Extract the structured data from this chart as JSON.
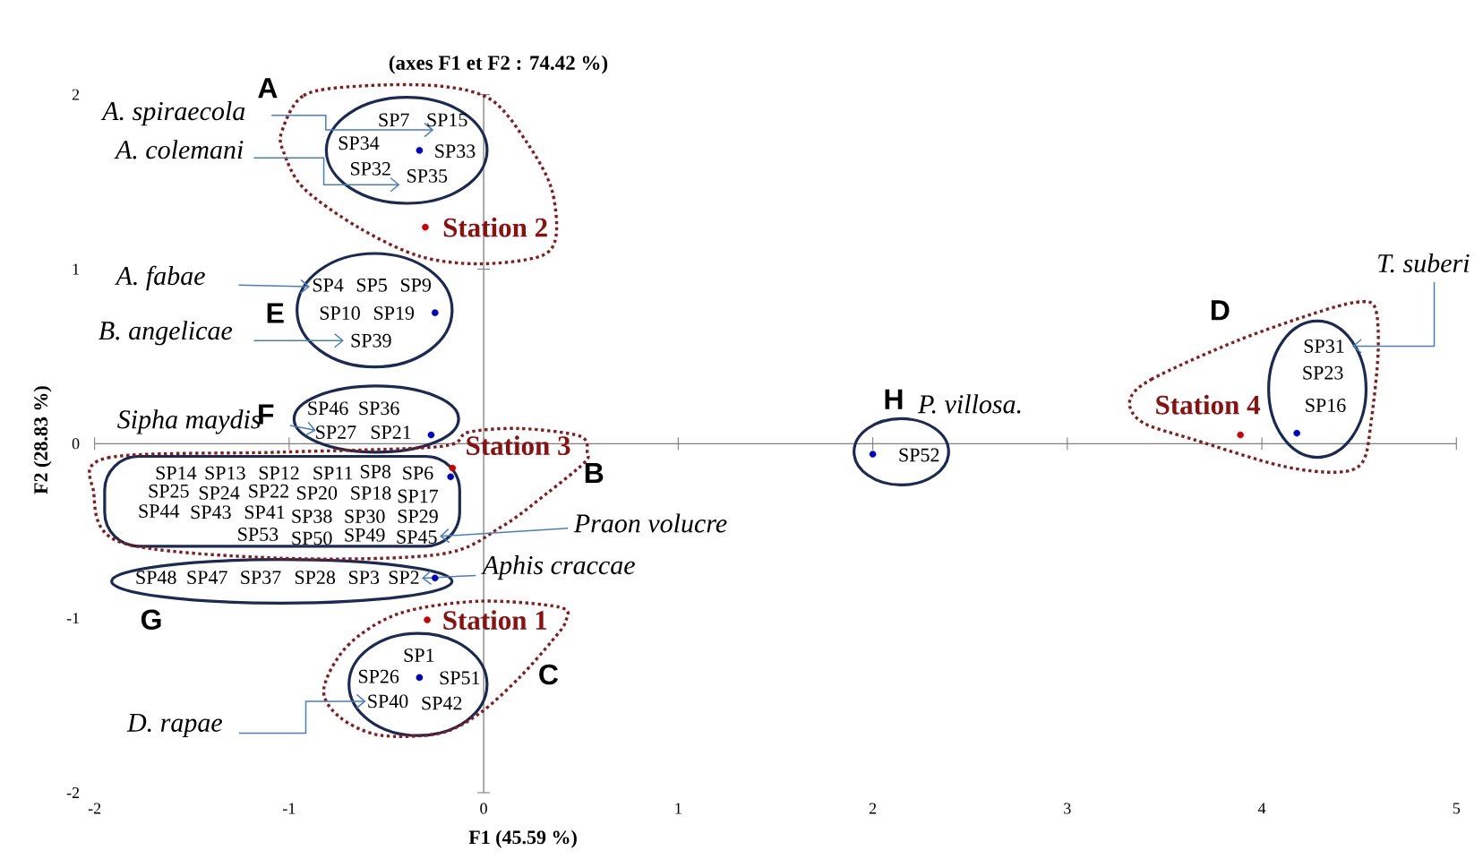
{
  "chart_data": {
    "type": "scatter",
    "title": "(axes F1 et F2 : 74.42 %)",
    "xlabel": "F1 (45.59 %)",
    "ylabel": "F2 (28.83 %)",
    "xlim": [
      -2,
      5
    ],
    "ylim": [
      -2,
      2
    ],
    "xticks": [
      -2,
      -1,
      0,
      1,
      2,
      3,
      4,
      5
    ],
    "yticks": [
      -2,
      -1,
      0,
      1,
      2
    ],
    "marker": "circle",
    "series": [
      {
        "color": "#0000c0",
        "x": [
          -0.33,
          -0.17,
          -0.33,
          4.18,
          -0.25,
          -0.27,
          -0.25,
          2.0
        ],
        "values": [
          1.68,
          -0.19,
          -1.34,
          0.06,
          0.75,
          0.05,
          -0.77,
          -0.06
        ]
      },
      {
        "color": "#cc0000",
        "x": [
          -0.29,
          -0.3,
          -0.16,
          3.89
        ],
        "values": [
          -1.01,
          1.24,
          -0.14,
          0.05
        ]
      }
    ],
    "annotations": [
      "A",
      "A. spiraecola",
      "A. colemani",
      "SP7",
      "SP15",
      "SP34",
      "SP33",
      "SP32",
      "SP35",
      {
        "text": "Station 2",
        "x": -0.3,
        "y": 1.24
      },
      "A. fabae",
      "E",
      "B. angelicae",
      "SP4",
      "SP5",
      "SP9",
      "SP10",
      "SP19",
      "SP39",
      "Sipha maydis",
      "F",
      "SP46",
      "SP36",
      "SP27",
      "SP21",
      {
        "text": "Station 3",
        "x": -0.16,
        "y": -0.14
      },
      "B",
      "SP14",
      "SP13",
      "SP12",
      "SP11",
      "SP8",
      "SP6",
      "SP25",
      "SP24",
      "SP22",
      "SP20",
      "SP18",
      "SP17",
      "SP44",
      "SP43",
      "SP41",
      "SP38",
      "SP30",
      "SP29",
      "SP53",
      "SP50",
      "SP49",
      "SP45",
      "Praon volucre",
      "SP48",
      "SP47",
      "SP37",
      "SP28",
      "SP3",
      "SP2",
      "Aphis craccae",
      "G",
      {
        "text": "Station 1",
        "x": -0.29,
        "y": -1.01
      },
      "SP1",
      "SP26",
      "SP51",
      "SP40",
      "SP42",
      "C",
      "D. rapae",
      "H",
      "P. villosa.",
      "SP52",
      "D",
      "T. suberi",
      {
        "text": "Station 4",
        "x": 3.89,
        "y": 0.05
      },
      "SP31",
      "SP23",
      "SP16"
    ]
  }
}
